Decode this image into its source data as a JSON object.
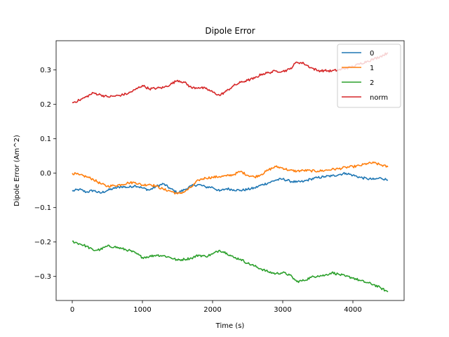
{
  "chart_data": {
    "type": "line",
    "title": "Dipole Error",
    "xlabel": "Time (s)",
    "ylabel": "Dipole Error (Am^2)",
    "xlim": [
      -230,
      4730
    ],
    "ylim": [
      -0.37,
      0.385
    ],
    "xticks": [
      0,
      1000,
      2000,
      3000,
      4000
    ],
    "xtick_labels": [
      "0",
      "1000",
      "2000",
      "3000",
      "4000"
    ],
    "yticks": [
      -0.3,
      -0.2,
      -0.1,
      0.0,
      0.1,
      0.2,
      0.3
    ],
    "ytick_labels": [
      "−0.3",
      "−0.2",
      "−0.1",
      "0.0",
      "0.1",
      "0.2",
      "0.3"
    ],
    "grid": false,
    "legend_position": "top-right",
    "x": [
      0,
      100,
      200,
      300,
      400,
      500,
      600,
      700,
      800,
      900,
      1000,
      1100,
      1200,
      1300,
      1400,
      1500,
      1600,
      1700,
      1800,
      1900,
      2000,
      2100,
      2200,
      2300,
      2400,
      2500,
      2600,
      2700,
      2800,
      2900,
      3000,
      3100,
      3200,
      3300,
      3400,
      3500,
      3600,
      3700,
      3800,
      3900,
      4000,
      4100,
      4200,
      4300,
      4400,
      4500
    ],
    "series": [
      {
        "name": "0",
        "color": "#1f77b4",
        "values": [
          -0.052,
          -0.047,
          -0.055,
          -0.05,
          -0.058,
          -0.05,
          -0.044,
          -0.039,
          -0.041,
          -0.036,
          -0.043,
          -0.049,
          -0.038,
          -0.031,
          -0.045,
          -0.057,
          -0.048,
          -0.037,
          -0.033,
          -0.04,
          -0.041,
          -0.052,
          -0.045,
          -0.048,
          -0.05,
          -0.047,
          -0.043,
          -0.034,
          -0.028,
          -0.02,
          -0.017,
          -0.023,
          -0.026,
          -0.024,
          -0.017,
          -0.013,
          -0.01,
          -0.008,
          -0.004,
          0.0,
          -0.006,
          -0.012,
          -0.016,
          -0.018,
          -0.014,
          -0.02
        ]
      },
      {
        "name": "1",
        "color": "#ff7f0e",
        "values": [
          0.0,
          -0.005,
          -0.01,
          -0.018,
          -0.03,
          -0.038,
          -0.036,
          -0.033,
          -0.028,
          -0.027,
          -0.035,
          -0.032,
          -0.038,
          -0.047,
          -0.052,
          -0.06,
          -0.054,
          -0.04,
          -0.02,
          -0.014,
          -0.012,
          -0.01,
          -0.008,
          -0.004,
          0.005,
          -0.006,
          -0.011,
          -0.003,
          0.01,
          0.019,
          0.015,
          0.008,
          0.006,
          0.008,
          0.007,
          0.006,
          0.008,
          0.011,
          0.013,
          0.017,
          0.019,
          0.022,
          0.028,
          0.03,
          0.024,
          0.018
        ]
      },
      {
        "name": "2",
        "color": "#2ca02c",
        "values": [
          -0.198,
          -0.205,
          -0.212,
          -0.224,
          -0.222,
          -0.212,
          -0.214,
          -0.219,
          -0.224,
          -0.232,
          -0.245,
          -0.242,
          -0.238,
          -0.24,
          -0.245,
          -0.253,
          -0.25,
          -0.247,
          -0.238,
          -0.242,
          -0.235,
          -0.224,
          -0.232,
          -0.245,
          -0.25,
          -0.262,
          -0.27,
          -0.279,
          -0.287,
          -0.292,
          -0.289,
          -0.296,
          -0.315,
          -0.312,
          -0.303,
          -0.298,
          -0.297,
          -0.289,
          -0.294,
          -0.3,
          -0.304,
          -0.312,
          -0.318,
          -0.324,
          -0.334,
          -0.345
        ]
      },
      {
        "name": "norm",
        "color": "#d62728",
        "values": [
          0.205,
          0.212,
          0.222,
          0.233,
          0.228,
          0.222,
          0.224,
          0.227,
          0.232,
          0.243,
          0.255,
          0.245,
          0.247,
          0.249,
          0.258,
          0.27,
          0.264,
          0.248,
          0.249,
          0.246,
          0.236,
          0.226,
          0.239,
          0.254,
          0.264,
          0.27,
          0.276,
          0.288,
          0.292,
          0.297,
          0.296,
          0.302,
          0.323,
          0.319,
          0.307,
          0.298,
          0.298,
          0.297,
          0.3,
          0.305,
          0.31,
          0.318,
          0.325,
          0.332,
          0.34,
          0.35
        ]
      }
    ]
  }
}
